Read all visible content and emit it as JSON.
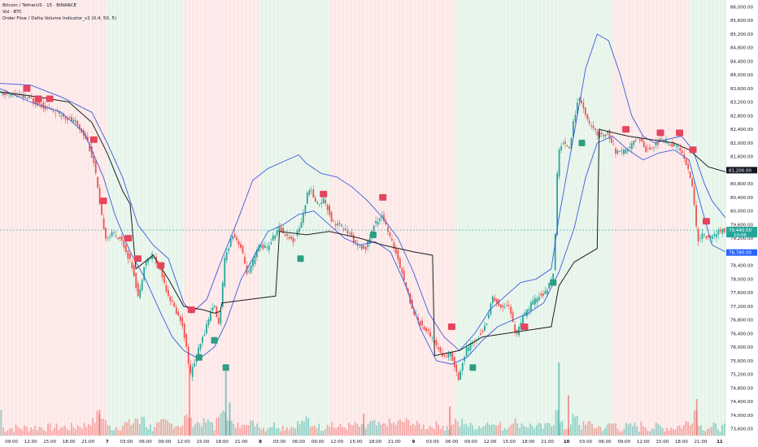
{
  "legend": {
    "symbol": "Bitcoin / TetherUS · 15 · BINANCE",
    "volume": "Vol · BTC",
    "indicator": "Order Flow / Delta Volume Indicator_v2 (0.4, 50, 5)"
  },
  "chart_data": {
    "type": "candlestick",
    "title": "Bitcoin / TetherUS · 15 · BINANCE",
    "ylim": [
      73400,
      86200
    ],
    "y_ticks": [
      "86,000.00",
      "85,600.00",
      "85,200.00",
      "84,800.00",
      "84,400.00",
      "84,000.00",
      "83,600.00",
      "83,200.00",
      "82,800.00",
      "82,400.00",
      "82,000.00",
      "81,600.00",
      "81,200.00",
      "80,800.00",
      "80,400.00",
      "80,000.00",
      "79,600.00",
      "79,200.00",
      "78,800.00",
      "78,400.00",
      "78,000.00",
      "77,600.00",
      "77,200.00",
      "76,800.00",
      "76,400.00",
      "76,000.00",
      "75,600.00",
      "75,200.00",
      "74,800.00",
      "74,400.00",
      "74,000.00",
      "73,600.00"
    ],
    "x_ticks": [
      {
        "label": "09:00",
        "x": 0.3
      },
      {
        "label": "12:00",
        "x": 0.8
      },
      {
        "label": "15:00",
        "x": 1.3
      },
      {
        "label": "18:00",
        "x": 1.8
      },
      {
        "label": "21:00",
        "x": 2.3
      },
      {
        "label": "7",
        "x": 2.8
      },
      {
        "label": "03:00",
        "x": 3.3
      },
      {
        "label": "06:00",
        "x": 3.8
      },
      {
        "label": "09:00",
        "x": 4.3
      },
      {
        "label": "12:00",
        "x": 4.8
      },
      {
        "label": "15:00",
        "x": 5.3
      },
      {
        "label": "18:00",
        "x": 5.8
      },
      {
        "label": "21:00",
        "x": 6.3
      },
      {
        "label": "8",
        "x": 6.8
      },
      {
        "label": "03:00",
        "x": 7.3
      },
      {
        "label": "06:00",
        "x": 7.8
      },
      {
        "label": "09:00",
        "x": 8.3
      },
      {
        "label": "12:00",
        "x": 8.8
      },
      {
        "label": "15:00",
        "x": 9.3
      },
      {
        "label": "18:00",
        "x": 9.8
      },
      {
        "label": "21:00",
        "x": 10.3
      },
      {
        "label": "9",
        "x": 10.8
      },
      {
        "label": "03:00",
        "x": 11.3
      },
      {
        "label": "06:00",
        "x": 11.8
      },
      {
        "label": "09:00",
        "x": 12.3
      },
      {
        "label": "12:00",
        "x": 12.8
      },
      {
        "label": "15:00",
        "x": 13.3
      },
      {
        "label": "18:00",
        "x": 13.8
      },
      {
        "label": "21:00",
        "x": 14.3
      },
      {
        "label": "10",
        "x": 14.8
      },
      {
        "label": "03:00",
        "x": 15.3
      },
      {
        "label": "06:00",
        "x": 15.8
      },
      {
        "label": "09:00",
        "x": 16.3
      },
      {
        "label": "12:00",
        "x": 16.8
      },
      {
        "label": "15:00",
        "x": 17.3
      },
      {
        "label": "18:00",
        "x": 17.8
      },
      {
        "label": "21:00",
        "x": 18.3
      },
      {
        "label": "11",
        "x": 18.8
      }
    ],
    "x_range": [
      0,
      18.95
    ],
    "price_path": [
      [
        0,
        83450
      ],
      [
        0.4,
        83420
      ],
      [
        0.8,
        83300
      ],
      [
        1.2,
        83050
      ],
      [
        1.6,
        82850
      ],
      [
        2.0,
        82600
      ],
      [
        2.3,
        82100
      ],
      [
        2.5,
        81300
      ],
      [
        2.65,
        80000
      ],
      [
        2.8,
        79200
      ],
      [
        3.0,
        79350
      ],
      [
        3.2,
        79150
      ],
      [
        3.5,
        78300
      ],
      [
        3.65,
        77400
      ],
      [
        3.8,
        78500
      ],
      [
        4.0,
        78700
      ],
      [
        4.2,
        78300
      ],
      [
        4.4,
        77600
      ],
      [
        4.6,
        77100
      ],
      [
        4.8,
        76650
      ],
      [
        5.0,
        75200
      ],
      [
        5.3,
        76200
      ],
      [
        5.6,
        77300
      ],
      [
        5.75,
        76600
      ],
      [
        5.9,
        78600
      ],
      [
        6.1,
        79350
      ],
      [
        6.3,
        79000
      ],
      [
        6.5,
        78100
      ],
      [
        6.8,
        79000
      ],
      [
        7.0,
        78900
      ],
      [
        7.3,
        79500
      ],
      [
        7.5,
        79300
      ],
      [
        7.7,
        79100
      ],
      [
        7.9,
        79700
      ],
      [
        8.1,
        80700
      ],
      [
        8.3,
        80200
      ],
      [
        8.5,
        80350
      ],
      [
        8.7,
        79700
      ],
      [
        9.0,
        79500
      ],
      [
        9.2,
        79250
      ],
      [
        9.4,
        78900
      ],
      [
        9.6,
        78950
      ],
      [
        9.8,
        79600
      ],
      [
        10.0,
        79900
      ],
      [
        10.2,
        79250
      ],
      [
        10.4,
        78700
      ],
      [
        10.6,
        77900
      ],
      [
        10.8,
        77100
      ],
      [
        11.0,
        76700
      ],
      [
        11.3,
        76300
      ],
      [
        11.6,
        75700
      ],
      [
        11.8,
        75800
      ],
      [
        12.0,
        75100
      ],
      [
        12.2,
        75900
      ],
      [
        12.5,
        76300
      ],
      [
        12.7,
        76600
      ],
      [
        12.9,
        77500
      ],
      [
        13.1,
        77150
      ],
      [
        13.3,
        77300
      ],
      [
        13.5,
        76350
      ],
      [
        13.7,
        76900
      ],
      [
        13.9,
        77250
      ],
      [
        14.1,
        77500
      ],
      [
        14.3,
        77600
      ],
      [
        14.5,
        78300
      ],
      [
        14.6,
        81700
      ],
      [
        14.7,
        82000
      ],
      [
        14.9,
        81900
      ],
      [
        15.1,
        83200
      ],
      [
        15.2,
        83300
      ],
      [
        15.35,
        82700
      ],
      [
        15.5,
        82400
      ],
      [
        15.7,
        82200
      ],
      [
        15.9,
        82300
      ],
      [
        16.1,
        81750
      ],
      [
        16.3,
        81700
      ],
      [
        16.5,
        81900
      ],
      [
        16.7,
        82200
      ],
      [
        16.9,
        81800
      ],
      [
        17.1,
        81900
      ],
      [
        17.3,
        82100
      ],
      [
        17.5,
        82000
      ],
      [
        17.7,
        81900
      ],
      [
        17.9,
        81600
      ],
      [
        18.1,
        80800
      ],
      [
        18.25,
        79150
      ],
      [
        18.4,
        79300
      ],
      [
        18.6,
        79200
      ],
      [
        18.8,
        79400
      ],
      [
        18.95,
        79440
      ]
    ],
    "vwap_path": [
      [
        0,
        83500
      ],
      [
        1.0,
        83350
      ],
      [
        1.8,
        83200
      ],
      [
        2.4,
        82600
      ],
      [
        2.8,
        81700
      ],
      [
        3.2,
        80600
      ],
      [
        3.4,
        80200
      ],
      [
        3.55,
        78300
      ],
      [
        4.0,
        78700
      ],
      [
        4.4,
        78000
      ],
      [
        4.8,
        77200
      ],
      [
        5.3,
        77100
      ],
      [
        5.6,
        77000
      ],
      [
        5.75,
        77050
      ],
      [
        5.8,
        77300
      ],
      [
        6.5,
        77400
      ],
      [
        7.2,
        77500
      ],
      [
        7.3,
        79400
      ],
      [
        8.0,
        79300
      ],
      [
        8.6,
        79400
      ],
      [
        9.4,
        79200
      ],
      [
        10.0,
        79000
      ],
      [
        10.6,
        78850
      ],
      [
        10.8,
        78800
      ],
      [
        11.3,
        78700
      ],
      [
        11.35,
        75750
      ],
      [
        12.0,
        75900
      ],
      [
        12.6,
        76300
      ],
      [
        13.2,
        76400
      ],
      [
        13.8,
        76500
      ],
      [
        14.4,
        76600
      ],
      [
        14.6,
        77800
      ],
      [
        15.0,
        78500
      ],
      [
        15.6,
        78900
      ],
      [
        15.65,
        82400
      ],
      [
        16.4,
        82200
      ],
      [
        17.0,
        82100
      ],
      [
        17.6,
        82000
      ],
      [
        18.0,
        81800
      ],
      [
        18.5,
        81300
      ],
      [
        18.95,
        81150
      ]
    ],
    "upper_band_path": [
      [
        0,
        83750
      ],
      [
        0.8,
        83700
      ],
      [
        1.6,
        83350
      ],
      [
        2.4,
        82900
      ],
      [
        2.8,
        82000
      ],
      [
        3.2,
        81000
      ],
      [
        3.6,
        79600
      ],
      [
        4.0,
        79000
      ],
      [
        4.4,
        78600
      ],
      [
        4.8,
        77300
      ],
      [
        5.0,
        77000
      ],
      [
        5.4,
        77400
      ],
      [
        5.8,
        78600
      ],
      [
        6.2,
        79700
      ],
      [
        6.6,
        80900
      ],
      [
        7.0,
        81250
      ],
      [
        7.4,
        81450
      ],
      [
        7.8,
        81650
      ],
      [
        8.0,
        81400
      ],
      [
        8.4,
        81100
      ],
      [
        8.8,
        81000
      ],
      [
        9.2,
        80700
      ],
      [
        9.6,
        80300
      ],
      [
        10.0,
        79800
      ],
      [
        10.4,
        79200
      ],
      [
        10.8,
        78200
      ],
      [
        11.2,
        77000
      ],
      [
        11.6,
        76300
      ],
      [
        12.0,
        75900
      ],
      [
        12.4,
        76400
      ],
      [
        12.8,
        77100
      ],
      [
        13.2,
        77500
      ],
      [
        13.6,
        77900
      ],
      [
        14.0,
        78000
      ],
      [
        14.4,
        78300
      ],
      [
        14.6,
        79800
      ],
      [
        15.0,
        82300
      ],
      [
        15.3,
        84200
      ],
      [
        15.6,
        85200
      ],
      [
        15.9,
        85000
      ],
      [
        16.2,
        84000
      ],
      [
        16.5,
        82800
      ],
      [
        16.8,
        82200
      ],
      [
        17.1,
        82000
      ],
      [
        17.4,
        82100
      ],
      [
        17.8,
        82200
      ],
      [
        18.1,
        81800
      ],
      [
        18.4,
        80800
      ],
      [
        18.6,
        80300
      ],
      [
        18.95,
        79800
      ]
    ],
    "lower_band_path": [
      [
        0,
        83600
      ],
      [
        0.8,
        83200
      ],
      [
        1.6,
        82900
      ],
      [
        2.2,
        82300
      ],
      [
        2.7,
        81000
      ],
      [
        3.0,
        79900
      ],
      [
        3.4,
        78800
      ],
      [
        3.8,
        78000
      ],
      [
        4.2,
        77000
      ],
      [
        4.5,
        76300
      ],
      [
        4.8,
        75900
      ],
      [
        5.2,
        75650
      ],
      [
        5.6,
        76000
      ],
      [
        5.9,
        76700
      ],
      [
        6.3,
        78000
      ],
      [
        6.7,
        78800
      ],
      [
        7.0,
        79400
      ],
      [
        7.4,
        79600
      ],
      [
        7.8,
        79900
      ],
      [
        8.2,
        80000
      ],
      [
        8.6,
        79600
      ],
      [
        9.0,
        79200
      ],
      [
        9.4,
        79000
      ],
      [
        9.8,
        79100
      ],
      [
        10.2,
        78800
      ],
      [
        10.6,
        77800
      ],
      [
        11.0,
        76500
      ],
      [
        11.4,
        75600
      ],
      [
        11.8,
        75500
      ],
      [
        12.2,
        75700
      ],
      [
        12.6,
        76200
      ],
      [
        13.0,
        76600
      ],
      [
        13.4,
        76800
      ],
      [
        13.8,
        77000
      ],
      [
        14.2,
        77300
      ],
      [
        14.6,
        78200
      ],
      [
        15.0,
        79500
      ],
      [
        15.3,
        81000
      ],
      [
        15.6,
        82000
      ],
      [
        16.0,
        82200
      ],
      [
        16.4,
        81800
      ],
      [
        16.8,
        81500
      ],
      [
        17.2,
        81700
      ],
      [
        17.6,
        81800
      ],
      [
        18.0,
        81500
      ],
      [
        18.3,
        80200
      ],
      [
        18.6,
        79000
      ],
      [
        18.95,
        78800
      ]
    ],
    "sell_markers": [
      [
        0.7,
        83600
      ],
      [
        1.0,
        83300
      ],
      [
        1.3,
        83300
      ],
      [
        2.45,
        82100
      ],
      [
        2.7,
        80300
      ],
      [
        3.35,
        79200
      ],
      [
        3.6,
        78600
      ],
      [
        4.2,
        78400
      ],
      [
        5.0,
        77100
      ],
      [
        8.45,
        80500
      ],
      [
        10.0,
        80400
      ],
      [
        11.8,
        76600
      ],
      [
        13.7,
        76600
      ],
      [
        16.35,
        82400
      ],
      [
        17.25,
        82300
      ],
      [
        17.75,
        82300
      ],
      [
        18.1,
        81800
      ],
      [
        18.45,
        79700
      ]
    ],
    "buy_markers": [
      [
        5.2,
        75700
      ],
      [
        5.6,
        76200
      ],
      [
        5.9,
        75400
      ],
      [
        7.85,
        78600
      ],
      [
        9.75,
        79300
      ],
      [
        12.35,
        75400
      ],
      [
        14.45,
        77900
      ],
      [
        15.2,
        82000
      ]
    ],
    "session_bands": [
      [
        0,
        0.3,
        "red"
      ],
      [
        0.3,
        2.8,
        "red"
      ],
      [
        2.8,
        4.8,
        "green"
      ],
      [
        4.8,
        6.8,
        "red"
      ],
      [
        6.8,
        8.6,
        "green"
      ],
      [
        8.6,
        10.8,
        "red"
      ],
      [
        10.8,
        11.9,
        "red"
      ],
      [
        11.9,
        14.5,
        "green"
      ],
      [
        14.5,
        16.0,
        "green"
      ],
      [
        16.0,
        18.0,
        "red"
      ],
      [
        18.0,
        18.95,
        "green"
      ]
    ],
    "volume_spikes": [
      [
        4.95,
        0.95,
        "red"
      ],
      [
        5.9,
        0.88,
        "green"
      ],
      [
        14.6,
        1.0,
        "green"
      ],
      [
        14.85,
        0.55,
        "red"
      ],
      [
        2.6,
        0.35,
        "red"
      ],
      [
        9.5,
        0.3,
        "red"
      ],
      [
        11.75,
        0.4,
        "red"
      ],
      [
        18.2,
        0.5,
        "red"
      ],
      [
        6.0,
        0.45,
        "green"
      ]
    ],
    "current_price_labels": [
      {
        "text": "79,440.00",
        "sub": "10:06",
        "price": 79440,
        "color": "#26a69a"
      },
      {
        "text": "81,200.00",
        "price": 81200,
        "color": "#131722"
      },
      {
        "text": "78,780.00",
        "price": 78780,
        "color": "#2962ff"
      }
    ]
  }
}
